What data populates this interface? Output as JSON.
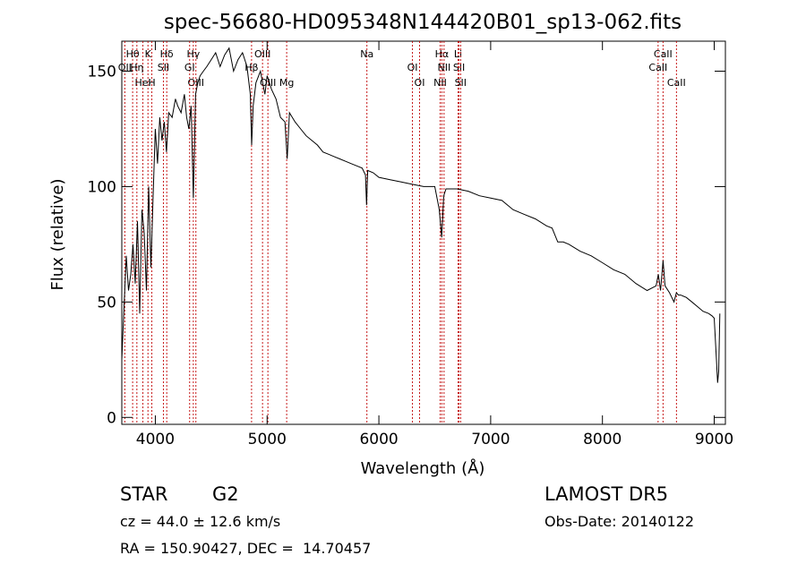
{
  "chart_data": {
    "type": "line",
    "title": "spec-56680-HD095348N144420B01_sp13-062.fits",
    "xlabel": "Wavelength (Å)",
    "ylabel": "Flux (relative)",
    "xlim": [
      3700,
      9100
    ],
    "ylim": [
      -3,
      163
    ],
    "x_ticks": [
      4000,
      5000,
      6000,
      7000,
      8000,
      9000
    ],
    "y_ticks": [
      0,
      50,
      100,
      150
    ],
    "grid": false,
    "series": [
      {
        "x": [
          3700,
          3720,
          3740,
          3760,
          3780,
          3800,
          3820,
          3840,
          3860,
          3880,
          3900,
          3920,
          3940,
          3960,
          3980,
          4000,
          4020,
          4040,
          4060,
          4080,
          4100,
          4120,
          4150,
          4180,
          4200,
          4230,
          4260,
          4280,
          4300,
          4320,
          4340,
          4360,
          4380,
          4400,
          4430,
          4460,
          4500,
          4540,
          4580,
          4620,
          4660,
          4700,
          4740,
          4780,
          4820,
          4850,
          4862,
          4875,
          4900,
          4940,
          4980,
          5000,
          5040,
          5080,
          5120,
          5160,
          5180,
          5200,
          5250,
          5300,
          5350,
          5400,
          5450,
          5500,
          5550,
          5600,
          5650,
          5700,
          5750,
          5800,
          5850,
          5880,
          5890,
          5900,
          5950,
          6000,
          6100,
          6200,
          6300,
          6400,
          6500,
          6540,
          6562,
          6580,
          6600,
          6650,
          6700,
          6800,
          6900,
          7000,
          7100,
          7200,
          7300,
          7400,
          7500,
          7550,
          7600,
          7650,
          7700,
          7800,
          7900,
          8000,
          8100,
          8200,
          8300,
          8400,
          8480,
          8500,
          8520,
          8542,
          8560,
          8600,
          8640,
          8662,
          8680,
          8700,
          8750,
          8800,
          8850,
          8900,
          8950,
          8980,
          9000,
          9020,
          9030,
          9040,
          9050
        ],
        "y": [
          25,
          48,
          70,
          55,
          62,
          75,
          58,
          85,
          45,
          90,
          80,
          55,
          100,
          65,
          95,
          125,
          110,
          130,
          120,
          128,
          115,
          132,
          130,
          138,
          135,
          132,
          140,
          130,
          125,
          135,
          95,
          140,
          145,
          148,
          150,
          152,
          155,
          158,
          152,
          157,
          160,
          150,
          155,
          158,
          152,
          140,
          118,
          135,
          145,
          150,
          140,
          148,
          142,
          138,
          130,
          128,
          112,
          132,
          128,
          125,
          122,
          120,
          118,
          115,
          114,
          113,
          112,
          111,
          110,
          109,
          108,
          105,
          92,
          107,
          106,
          104,
          103,
          102,
          101,
          100,
          100,
          90,
          78,
          96,
          99,
          99,
          99,
          98,
          96,
          95,
          94,
          90,
          88,
          86,
          83,
          82,
          76,
          76,
          75,
          72,
          70,
          67,
          64,
          62,
          58,
          55,
          57,
          62,
          55,
          68,
          57,
          54,
          50,
          54,
          53,
          53,
          52,
          50,
          48,
          46,
          45,
          44,
          43,
          25,
          15,
          20,
          45
        ]
      }
    ],
    "lines": [
      {
        "name": "Hθ",
        "x": 3797
      },
      {
        "name": "OII",
        "x": 3727
      },
      {
        "name": "HeI",
        "x": 3889
      },
      {
        "name": "K",
        "x": 3934
      },
      {
        "name": "Hη",
        "x": 3835
      },
      {
        "name": "H",
        "x": 3969
      },
      {
        "name": "Hδ",
        "x": 4102
      },
      {
        "name": "SII",
        "x": 4072
      },
      {
        "name": "OIII",
        "x": 4363
      },
      {
        "name": "Hγ",
        "x": 4340
      },
      {
        "name": "GI",
        "x": 4307
      },
      {
        "name": "OIII",
        "x": 5007
      },
      {
        "name": "OIII",
        "x": 4959
      },
      {
        "name": "Hβ",
        "x": 4861
      },
      {
        "name": "Mg",
        "x": 5175
      },
      {
        "name": "Na",
        "x": 5893
      },
      {
        "name": "OI",
        "x": 6300
      },
      {
        "name": "OI",
        "x": 6364
      },
      {
        "name": "Hα",
        "x": 6563
      },
      {
        "name": "SII",
        "x": 6717
      },
      {
        "name": "NII",
        "x": 6548
      },
      {
        "name": "Li",
        "x": 6708
      },
      {
        "name": "NII",
        "x": 6583
      },
      {
        "name": "SII",
        "x": 6731
      },
      {
        "name": "CaII",
        "x": 8542
      },
      {
        "name": "CaII",
        "x": 8498
      },
      {
        "name": "CaII",
        "x": 8662
      }
    ]
  },
  "info": {
    "object_type": "STAR",
    "subclass": "G2",
    "survey": "LAMOST DR5",
    "redshift": "cz = 44.0 ± 12.6 km/s",
    "obs_date": "Obs-Date: 20140122",
    "coords": "RA = 150.90427, DEC =  14.70457"
  }
}
